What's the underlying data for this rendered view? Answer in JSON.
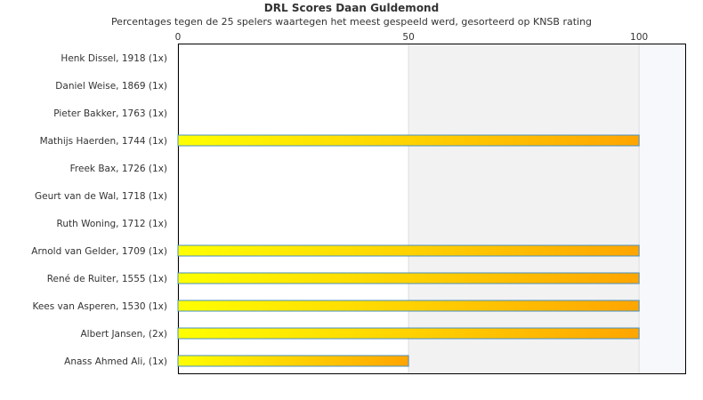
{
  "chart_data": {
    "type": "bar",
    "orientation": "horizontal",
    "title": "DRL Scores Daan Guldemond",
    "subtitle": "Percentages tegen de 25 spelers waartegen het meest gespeeld werd, gesorteerd op KNSB rating",
    "categories": [
      "Henk Dissel, 1918 (1x)",
      "Daniel Weise, 1869 (1x)",
      "Pieter Bakker, 1763 (1x)",
      "Mathijs Haerden, 1744 (1x)",
      "Freek Bax, 1726 (1x)",
      "Geurt van de Wal, 1718 (1x)",
      "Ruth Woning, 1712 (1x)",
      "Arnold van Gelder, 1709 (1x)",
      "René de Ruiter, 1555 (1x)",
      "Kees van Asperen, 1530 (1x)",
      "Albert Jansen,  (2x)",
      "Anass Ahmed Ali,  (1x)"
    ],
    "values": [
      0,
      0,
      0,
      100,
      0,
      0,
      0,
      100,
      100,
      100,
      100,
      50
    ],
    "xlim": [
      0,
      110
    ],
    "xticks": [
      "0",
      "50",
      "100"
    ],
    "xtick_values": [
      0,
      50,
      100
    ],
    "axis_position": "top",
    "grid": true,
    "colors": {
      "bar_start": "#ffff00",
      "bar_end": "#ffa500",
      "bar_border": "#4a90c0",
      "band_shade": "#f2f2f2",
      "band_shade_light": "#f7f8fc",
      "gridline": "#dddddd"
    }
  }
}
